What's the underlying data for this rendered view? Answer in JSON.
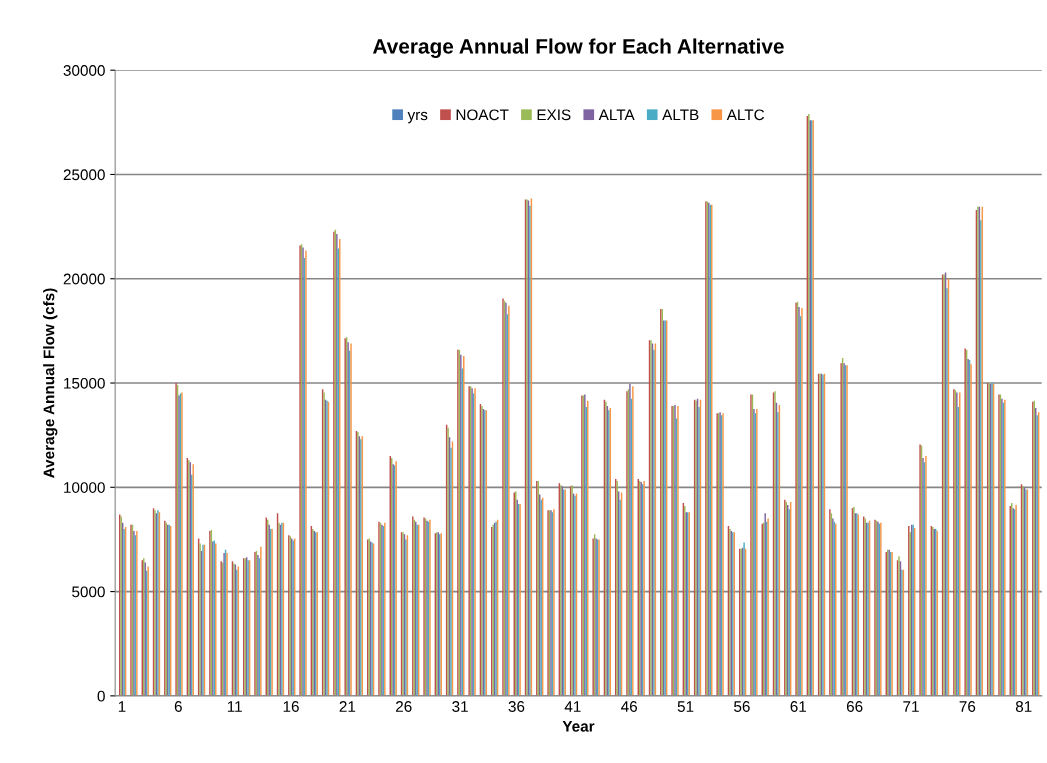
{
  "chart_data": {
    "type": "bar",
    "title": "Average Annual Flow for Each Alternative",
    "xlabel": "Year",
    "ylabel": "Average Annual Flow (cfs)",
    "categories": [
      "1",
      null,
      null,
      null,
      null,
      "6",
      null,
      null,
      null,
      null,
      "11",
      null,
      null,
      null,
      null,
      "16",
      null,
      null,
      null,
      null,
      "21",
      null,
      null,
      null,
      null,
      "26",
      null,
      null,
      null,
      null,
      "31",
      null,
      null,
      null,
      null,
      "36",
      null,
      null,
      null,
      null,
      "41",
      null,
      null,
      null,
      null,
      "46",
      null,
      null,
      null,
      null,
      "51",
      null,
      null,
      null,
      null,
      "56",
      null,
      null,
      null,
      null,
      "61",
      null,
      null,
      null,
      null,
      "66",
      null,
      null,
      null,
      null,
      "71",
      null,
      null,
      null,
      null,
      "76",
      null,
      null,
      null,
      null,
      "81",
      null
    ],
    "series": [
      {
        "name": "yrs",
        "color": "#4f81bd",
        "values": [
          0,
          0,
          0,
          0,
          0,
          0,
          0,
          0,
          0,
          0,
          0,
          0,
          0,
          0,
          0,
          0,
          0,
          0,
          0,
          0,
          0,
          0,
          0,
          0,
          0,
          0,
          0,
          0,
          0,
          0,
          0,
          0,
          0,
          0,
          0,
          0,
          0,
          0,
          0,
          0,
          0,
          0,
          0,
          0,
          0,
          0,
          0,
          0,
          0,
          0,
          0,
          0,
          0,
          0,
          0,
          0,
          0,
          0,
          0,
          0,
          0,
          0,
          0,
          0,
          0,
          0,
          0,
          0,
          0,
          0,
          0,
          0,
          0,
          0,
          0,
          0,
          0,
          0,
          0,
          0,
          0,
          0
        ]
      },
      {
        "name": "NOACT",
        "color": "#c0504d",
        "values": [
          8700,
          8200,
          6500,
          9000,
          8400,
          15000,
          11400,
          7550,
          7900,
          6450,
          6450,
          6600,
          6900,
          8550,
          8750,
          7700,
          21600,
          8150,
          14700,
          22250,
          17150,
          12700,
          7500,
          8350,
          11500,
          7850,
          8600,
          8550,
          7800,
          13000,
          16600,
          14850,
          14000,
          8100,
          19050,
          9750,
          23800,
          10300,
          8900,
          10200,
          10050,
          14400,
          7550,
          14200,
          10400,
          14600,
          10400,
          17050,
          18550,
          13900,
          9250,
          14200,
          23700,
          13550,
          8150,
          7050,
          14450,
          8250,
          14550,
          9400,
          18850,
          27800,
          15450,
          8950,
          15950,
          9000,
          8600,
          8450,
          6900,
          6500,
          8150,
          12050,
          8150,
          20200,
          14700,
          16650,
          23300,
          15000,
          14450,
          9100,
          10150,
          14100
        ]
      },
      {
        "name": "EXIS",
        "color": "#9bbb59",
        "values": [
          8600,
          8200,
          6600,
          8900,
          8300,
          14900,
          11300,
          7300,
          7950,
          6400,
          6350,
          6600,
          6950,
          8450,
          8300,
          7650,
          21650,
          8000,
          14550,
          22350,
          17200,
          12650,
          7550,
          8300,
          11400,
          7850,
          8450,
          8500,
          7850,
          12850,
          16600,
          14850,
          13900,
          8200,
          18950,
          9800,
          23800,
          10300,
          8900,
          10100,
          10100,
          14400,
          7750,
          14100,
          10300,
          14700,
          10300,
          17050,
          18550,
          13900,
          9100,
          14150,
          23700,
          13550,
          8000,
          7050,
          14450,
          8300,
          14600,
          9300,
          18900,
          27900,
          15450,
          8750,
          16200,
          9050,
          8500,
          8400,
          7000,
          6700,
          7850,
          12000,
          8100,
          20200,
          14650,
          16600,
          23450,
          15000,
          14450,
          9250,
          10050,
          14150
        ]
      },
      {
        "name": "ALTA",
        "color": "#8064a2",
        "values": [
          8300,
          7900,
          6400,
          8750,
          8200,
          14400,
          11200,
          6950,
          7400,
          6850,
          6300,
          6650,
          6750,
          8200,
          8200,
          7550,
          21500,
          7900,
          14200,
          22150,
          16950,
          12450,
          7400,
          8200,
          11100,
          7750,
          8350,
          8400,
          7850,
          12400,
          16350,
          14750,
          13750,
          8300,
          18850,
          9400,
          23750,
          9650,
          8900,
          10050,
          9700,
          14450,
          7550,
          13900,
          9800,
          14950,
          10250,
          16900,
          18000,
          13950,
          8800,
          14250,
          23650,
          13600,
          7900,
          7100,
          13750,
          8750,
          14050,
          9150,
          18650,
          27600,
          15450,
          8500,
          15950,
          8750,
          8300,
          8350,
          7000,
          6450,
          8200,
          11400,
          8000,
          20300,
          14550,
          16150,
          23450,
          14950,
          14250,
          9000,
          10000,
          13800
        ]
      },
      {
        "name": "ALTB",
        "color": "#4bacc6",
        "values": [
          8000,
          7700,
          6000,
          8900,
          8200,
          14500,
          10600,
          7250,
          7450,
          7000,
          6050,
          6500,
          6600,
          8000,
          8300,
          7450,
          21000,
          7850,
          14150,
          21450,
          16550,
          12300,
          7350,
          8150,
          11050,
          7500,
          8200,
          8350,
          7750,
          11900,
          15700,
          14500,
          13700,
          8350,
          18300,
          9200,
          23500,
          9400,
          8800,
          9900,
          9600,
          13850,
          7500,
          13700,
          9400,
          14250,
          10150,
          16600,
          18000,
          13300,
          8800,
          13850,
          23550,
          13450,
          7850,
          7350,
          13550,
          8350,
          13600,
          8950,
          18200,
          27600,
          15400,
          8350,
          15850,
          8750,
          8300,
          8250,
          6900,
          6050,
          8200,
          11200,
          8000,
          19550,
          13850,
          16100,
          22800,
          15000,
          14050,
          8950,
          9900,
          13450
        ]
      },
      {
        "name": "ALTC",
        "color": "#f79646",
        "values": [
          8100,
          7900,
          6200,
          8800,
          8150,
          14550,
          11100,
          7250,
          7300,
          6850,
          6200,
          6500,
          7150,
          8000,
          8300,
          7550,
          21350,
          7850,
          14100,
          21900,
          16900,
          12450,
          7300,
          8300,
          11250,
          7700,
          8200,
          8450,
          7800,
          12200,
          16300,
          14750,
          13700,
          8450,
          18700,
          9200,
          23850,
          9500,
          8950,
          9900,
          9700,
          14150,
          7500,
          13800,
          9750,
          14850,
          10300,
          16900,
          18000,
          13900,
          8800,
          14200,
          23550,
          13550,
          7850,
          7050,
          13750,
          8500,
          13950,
          9300,
          18600,
          27600,
          15450,
          8250,
          15850,
          8700,
          8400,
          8300,
          6900,
          6050,
          8050,
          11500,
          7900,
          20000,
          14550,
          15900,
          23450,
          14950,
          14200,
          9150,
          9900,
          13600
        ]
      }
    ],
    "ylim": [
      0,
      30000
    ],
    "yticks": [
      0,
      5000,
      10000,
      15000,
      20000,
      25000,
      30000
    ],
    "grid": "y",
    "legend": "top"
  }
}
